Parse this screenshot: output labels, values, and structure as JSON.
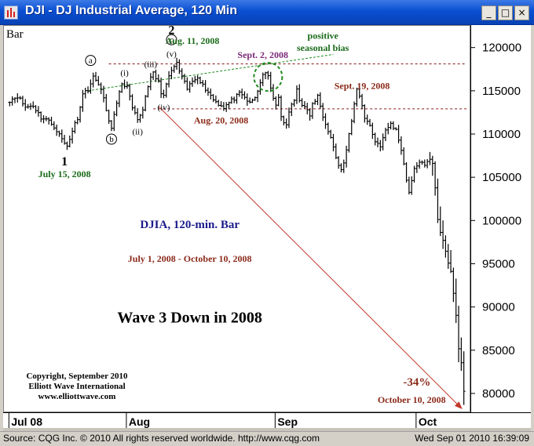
{
  "window": {
    "title": "DJI - DJ Industrial Average, 120 Min",
    "minimize_glyph": "_",
    "maximize_glyph": "□",
    "close_glyph": "×"
  },
  "status": {
    "source": "Source: CQG Inc. © 2010 All rights reserved worldwide. http://www.cqg.com",
    "datetime": "Wed Sep 01 2010 16:39:09"
  },
  "colors": {
    "bars": "#000000",
    "green_text": "#1a6b1a",
    "brown_text": "#8b2a1a",
    "purple_text": "#7a2a7a",
    "blue_text": "#1a1a8b",
    "trend_line": "#c0392b",
    "resistance_line": "#8b1a1a",
    "circle_dashed": "#1f8a1f"
  },
  "chart_data": {
    "type": "ohlc",
    "bar_label": "Bar",
    "title": "",
    "xlabel": "",
    "ylabel": "",
    "ylim": [
      78000,
      122600
    ],
    "yticks": [
      80000,
      85000,
      90000,
      95000,
      100000,
      105000,
      110000,
      115000,
      120000
    ],
    "x_ticks": [
      {
        "label": "Jul 08",
        "bar": 0
      },
      {
        "label": "Aug",
        "bar": 45
      },
      {
        "label": "Sep",
        "bar": 102
      },
      {
        "label": "Oct",
        "bar": 156
      }
    ],
    "x_domain": [
      -1,
      175
    ],
    "anchors": [
      [
        0,
        114000
      ],
      [
        3,
        114500
      ],
      [
        6,
        113200
      ],
      [
        9,
        113400
      ],
      [
        12,
        112000
      ],
      [
        14,
        111800
      ],
      [
        17,
        111000
      ],
      [
        19,
        110000
      ],
      [
        21,
        109000
      ],
      [
        22,
        108700
      ],
      [
        24,
        110500
      ],
      [
        26,
        112000
      ],
      [
        28,
        114700
      ],
      [
        30,
        115300
      ],
      [
        32,
        116600
      ],
      [
        34,
        116000
      ],
      [
        35,
        115200
      ],
      [
        37,
        112900
      ],
      [
        38,
        111400
      ],
      [
        39,
        111000
      ],
      [
        41,
        113500
      ],
      [
        43,
        116000
      ],
      [
        45,
        115500
      ],
      [
        47,
        113000
      ],
      [
        49,
        111600
      ],
      [
        51,
        113000
      ],
      [
        53,
        115800
      ],
      [
        55,
        117100
      ],
      [
        57,
        116000
      ],
      [
        58,
        115000
      ],
      [
        59,
        114500
      ],
      [
        61,
        116800
      ],
      [
        63,
        117900
      ],
      [
        64,
        118200
      ],
      [
        66,
        116600
      ],
      [
        68,
        115300
      ],
      [
        70,
        116200
      ],
      [
        72,
        116800
      ],
      [
        74,
        115700
      ],
      [
        76,
        115000
      ],
      [
        78,
        114100
      ],
      [
        80,
        113600
      ],
      [
        82,
        113200
      ],
      [
        84,
        113700
      ],
      [
        86,
        114200
      ],
      [
        88,
        114700
      ],
      [
        90,
        114300
      ],
      [
        92,
        113600
      ],
      [
        94,
        114300
      ],
      [
        96,
        116000
      ],
      [
        97,
        117100
      ],
      [
        99,
        116800
      ],
      [
        100,
        115200
      ],
      [
        102,
        113600
      ],
      [
        103,
        114100
      ],
      [
        104,
        112000
      ],
      [
        106,
        111000
      ],
      [
        107,
        112700
      ],
      [
        109,
        114000
      ],
      [
        110,
        115300
      ],
      [
        111,
        114100
      ],
      [
        113,
        113100
      ],
      [
        115,
        112300
      ],
      [
        116,
        113500
      ],
      [
        118,
        114400
      ],
      [
        120,
        112300
      ],
      [
        122,
        110600
      ],
      [
        124,
        108700
      ],
      [
        125,
        107200
      ],
      [
        127,
        105900
      ],
      [
        128,
        106500
      ],
      [
        130,
        110000
      ],
      [
        132,
        113500
      ],
      [
        133,
        115300
      ],
      [
        134,
        114600
      ],
      [
        135,
        113500
      ],
      [
        136,
        111900
      ],
      [
        138,
        111100
      ],
      [
        140,
        109200
      ],
      [
        142,
        108800
      ],
      [
        144,
        110400
      ],
      [
        146,
        111300
      ],
      [
        148,
        110500
      ],
      [
        150,
        108400
      ],
      [
        152,
        104800
      ],
      [
        153,
        103500
      ],
      [
        155,
        105900
      ],
      [
        157,
        107000
      ],
      [
        159,
        106300
      ],
      [
        161,
        107300
      ],
      [
        162,
        106800
      ],
      [
        163,
        104000
      ],
      [
        164,
        100300
      ],
      [
        165,
        98500
      ],
      [
        166,
        97700
      ],
      [
        167,
        96500
      ],
      [
        168,
        95200
      ],
      [
        169,
        94200
      ],
      [
        170,
        91700
      ],
      [
        171,
        89000
      ],
      [
        172,
        85500
      ],
      [
        173,
        83500
      ],
      [
        174,
        80200
      ]
    ],
    "resistance_levels": [
      {
        "y": 118200,
        "x_from": 38,
        "x_to": 175
      },
      {
        "y": 113000,
        "x_from": 55,
        "x_to": 175
      }
    ],
    "trend_line": {
      "from": [
        57,
        113300
      ],
      "to": [
        173,
        78400
      ]
    },
    "seasonal_line": {
      "from": [
        30,
        115100
      ],
      "to": [
        124,
        119300
      ]
    },
    "circle": {
      "x": 99,
      "y": 116700
    },
    "wave_labels": [
      {
        "text": "1",
        "bar": 21,
        "y": 106900,
        "style": "big"
      },
      {
        "text": "a",
        "bar": 31,
        "y": 118600,
        "style": "circled"
      },
      {
        "text": "b",
        "bar": 39,
        "y": 109500,
        "style": "circled"
      },
      {
        "text": "(i)",
        "bar": 44,
        "y": 117200,
        "style": "paren"
      },
      {
        "text": "(ii)",
        "bar": 49,
        "y": 110400,
        "style": "paren"
      },
      {
        "text": "(iii)",
        "bar": 54,
        "y": 118200,
        "style": "paren"
      },
      {
        "text": "(iv)",
        "bar": 59,
        "y": 113200,
        "style": "paren"
      },
      {
        "text": "(v)",
        "bar": 62,
        "y": 119400,
        "style": "paren"
      },
      {
        "text": "c",
        "bar": 62,
        "y": 121000,
        "style": "circled"
      },
      {
        "text": "2",
        "bar": 62,
        "y": 122100,
        "style": "big"
      }
    ],
    "annotations": [
      {
        "text": "July 15, 2008",
        "bar": 21,
        "y": 105100,
        "color": "green_text"
      },
      {
        "text": "Aug. 11, 2008",
        "bar": 70,
        "y": 120500,
        "color": "green_text"
      },
      {
        "text": "Sept. 2, 2008",
        "bar": 97,
        "y": 118900,
        "color": "purple_text"
      },
      {
        "text": "positive",
        "bar": 120,
        "y": 121100,
        "color": "green_text"
      },
      {
        "text": "seasonal bias",
        "bar": 120,
        "y": 119700,
        "color": "green_text"
      },
      {
        "text": "Aug. 20, 2008",
        "bar": 81,
        "y": 111300,
        "color": "brown_text"
      },
      {
        "text": "Sept. 19, 2008",
        "bar": 135,
        "y": 115300,
        "color": "brown_text"
      },
      {
        "text": "DJIA, 120-min. Bar",
        "bar": 69,
        "y": 99200,
        "color": "blue_text",
        "size": "mid"
      },
      {
        "text": "July 1, 2008 - October 10, 2008",
        "bar": 69,
        "y": 95300,
        "color": "brown_text"
      },
      {
        "text": "Wave 3 Down in 2008",
        "bar": 69,
        "y": 88300,
        "color": "black",
        "size": "big"
      },
      {
        "text": "-34%",
        "bar": 156,
        "y": 81000,
        "color": "brown_text",
        "size": "mid"
      },
      {
        "text": "October 10, 2008",
        "bar": 154,
        "y": 79000,
        "color": "brown_text"
      }
    ],
    "copyright": [
      "Copyright, September 2010",
      "Elliott Wave International",
      "www.elliottwave.com"
    ]
  }
}
